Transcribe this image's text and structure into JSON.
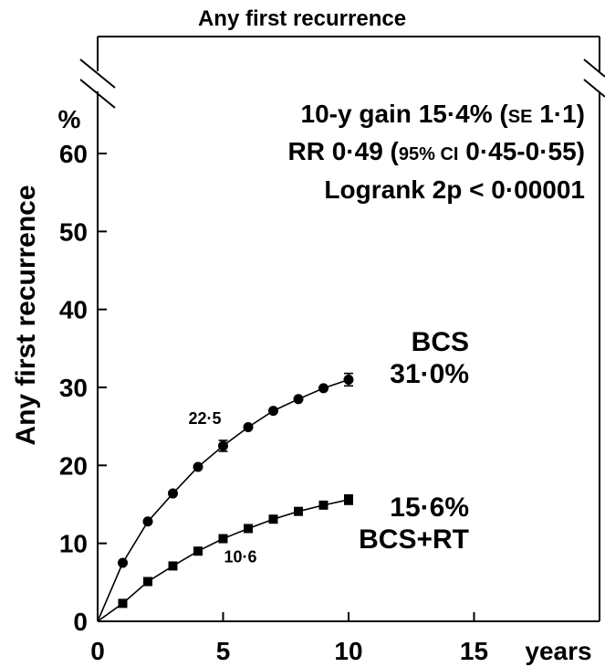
{
  "chart_data": {
    "type": "line",
    "title": "Any first recurrence",
    "ylabel": "Any first recurrence",
    "y_unit": "%",
    "x_unit": "years",
    "xlim": [
      0,
      20
    ],
    "ylim": [
      0,
      75
    ],
    "x_ticks": [
      "0",
      "5",
      "10",
      "15"
    ],
    "y_ticks": [
      "0",
      "10",
      "20",
      "30",
      "40",
      "50",
      "60"
    ],
    "grid": false,
    "series": [
      {
        "name": "BCS",
        "end_label": "31·0%",
        "marker": "circle",
        "x": [
          0,
          1,
          2,
          3,
          4,
          5,
          6,
          7,
          8,
          9,
          10
        ],
        "y": [
          0,
          7.5,
          12.8,
          16.4,
          19.8,
          22.5,
          24.9,
          27.0,
          28.5,
          29.9,
          31.0
        ],
        "error": [
          0,
          0,
          0,
          0,
          0,
          0.7,
          0,
          0,
          0,
          0,
          0.8
        ],
        "annotation": {
          "x": 5,
          "text": "22·5"
        }
      },
      {
        "name": "BCS+RT",
        "end_label": "15·6%",
        "marker": "square",
        "x": [
          0,
          1,
          2,
          3,
          4,
          5,
          6,
          7,
          8,
          9,
          10
        ],
        "y": [
          0,
          2.3,
          5.1,
          7.1,
          9.0,
          10.6,
          11.9,
          13.1,
          14.1,
          14.9,
          15.6
        ],
        "error": [
          0,
          0,
          0,
          0,
          0,
          0,
          0,
          0,
          0,
          0,
          0.6
        ],
        "annotation": {
          "x": 5,
          "text": "10·6"
        }
      }
    ],
    "stats": [
      {
        "parts": [
          {
            "t": "10-y gain 15·4% (",
            "s": false
          },
          {
            "t": "SE",
            "s": true
          },
          {
            "t": " 1·1)",
            "s": false
          }
        ]
      },
      {
        "parts": [
          {
            "t": "RR 0·49 (",
            "s": false
          },
          {
            "t": "95% CI",
            "s": true
          },
          {
            "t": " 0·45-0·55)",
            "s": false
          }
        ]
      },
      {
        "parts": [
          {
            "t": "Logrank 2p < 0·00001",
            "s": false
          }
        ]
      }
    ]
  }
}
